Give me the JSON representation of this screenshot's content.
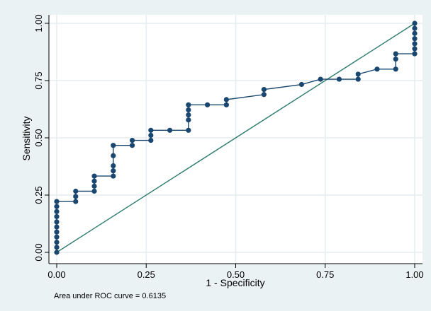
{
  "chart_data": {
    "type": "line",
    "title": "",
    "xlabel": "1 - Specificity",
    "ylabel": "Sensitivity",
    "xlim": [
      0,
      1
    ],
    "ylim": [
      0,
      1
    ],
    "grid": true,
    "xticks": [
      0,
      0.25,
      0.5,
      0.75,
      1
    ],
    "yticks": [
      0,
      0.25,
      0.5,
      0.75,
      1
    ],
    "xtick_labels": [
      "0.00",
      "0.25",
      "0.50",
      "0.75",
      "1.00"
    ],
    "ytick_labels": [
      "0.00",
      "0.25",
      "0.50",
      "0.75",
      "1.00"
    ],
    "annotation": "Area under ROC curve = 0.6135",
    "colors": {
      "roc": "#1a476f",
      "reference": "#2e7d6e",
      "background": "#eaf2f3",
      "plot_area": "#ffffff",
      "grid": "#e5edf0"
    },
    "series": [
      {
        "points": [
          [
            0,
            0
          ],
          [
            0,
            0.022
          ],
          [
            0,
            0.044
          ],
          [
            0,
            0.067
          ],
          [
            0,
            0.089
          ],
          [
            0,
            0.111
          ],
          [
            0,
            0.133
          ],
          [
            0,
            0.156
          ],
          [
            0,
            0.178
          ],
          [
            0,
            0.2
          ],
          [
            0,
            0.222
          ],
          [
            0.053,
            0.222
          ],
          [
            0.053,
            0.244
          ],
          [
            0.053,
            0.267
          ],
          [
            0.105,
            0.267
          ],
          [
            0.105,
            0.289
          ],
          [
            0.105,
            0.311
          ],
          [
            0.105,
            0.333
          ],
          [
            0.158,
            0.333
          ],
          [
            0.158,
            0.356
          ],
          [
            0.158,
            0.378
          ],
          [
            0.158,
            0.422
          ],
          [
            0.158,
            0.467
          ],
          [
            0.211,
            0.467
          ],
          [
            0.211,
            0.489
          ],
          [
            0.263,
            0.489
          ],
          [
            0.263,
            0.511
          ],
          [
            0.263,
            0.533
          ],
          [
            0.316,
            0.533
          ],
          [
            0.368,
            0.533
          ],
          [
            0.368,
            0.578
          ],
          [
            0.368,
            0.6
          ],
          [
            0.368,
            0.622
          ],
          [
            0.368,
            0.644
          ],
          [
            0.421,
            0.644
          ],
          [
            0.474,
            0.644
          ],
          [
            0.474,
            0.667
          ],
          [
            0.579,
            0.689
          ],
          [
            0.579,
            0.711
          ],
          [
            0.684,
            0.733
          ],
          [
            0.737,
            0.756
          ],
          [
            0.789,
            0.756
          ],
          [
            0.842,
            0.756
          ],
          [
            0.842,
            0.778
          ],
          [
            0.895,
            0.8
          ],
          [
            0.947,
            0.8
          ],
          [
            0.947,
            0.844
          ],
          [
            0.947,
            0.867
          ],
          [
            1,
            0.867
          ],
          [
            1,
            0.889
          ],
          [
            1,
            0.911
          ],
          [
            1,
            0.933
          ],
          [
            1,
            0.956
          ],
          [
            1,
            0.978
          ],
          [
            1,
            1
          ]
        ]
      }
    ],
    "reference_line": [
      [
        0,
        0
      ],
      [
        1,
        1
      ]
    ]
  }
}
